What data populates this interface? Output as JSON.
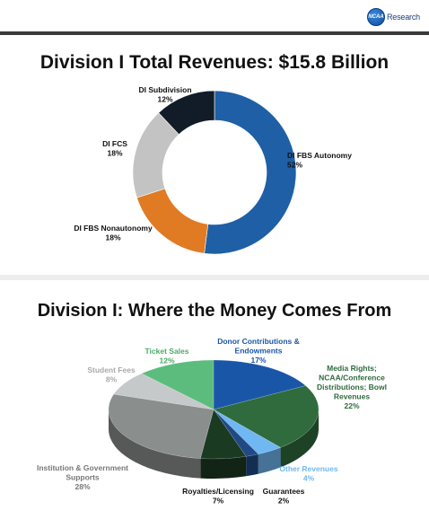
{
  "header": {
    "logo_text": "Research",
    "logo_mark": "NCAA"
  },
  "chart_data": [
    {
      "type": "pie",
      "variant": "donut",
      "title": "Division I Total Revenues: $15.8 Billion",
      "slices": [
        {
          "label": "DI FBS Autonomy",
          "value": 52,
          "value_label": "52%",
          "color": "#1f5fa6"
        },
        {
          "label": "DI FBS Nonautonomy",
          "value": 18,
          "value_label": "18%",
          "color": "#e07b24"
        },
        {
          "label": "DI FCS",
          "value": 18,
          "value_label": "18%",
          "color": "#c3c3c3"
        },
        {
          "label": "DI Subdivision",
          "value": 12,
          "value_label": "12%",
          "color": "#111c28"
        }
      ]
    },
    {
      "type": "pie",
      "variant": "3d",
      "title": "Division I: Where the Money Comes From",
      "slices": [
        {
          "label": "Donor Contributions & Endowments",
          "value": 17,
          "value_label": "17%",
          "color": "#1a56a8",
          "label_color": "#1a56a8"
        },
        {
          "label": "Media Rights; NCAA/Conference Distributions; Bowl Revenues",
          "value": 22,
          "value_label": "22%",
          "color": "#2f6b3c",
          "label_color": "#2f6b3c"
        },
        {
          "label": "Other Revenues",
          "value": 4,
          "value_label": "4%",
          "color": "#6fb8f2",
          "label_color": "#6fb8f2"
        },
        {
          "label": "Guarantees",
          "value": 2,
          "value_label": "2%",
          "color": "#1f4a86",
          "label_color": "#111111"
        },
        {
          "label": "Royalties/Licensing",
          "value": 7,
          "value_label": "7%",
          "color": "#1b3a22",
          "label_color": "#111111"
        },
        {
          "label": "Institution & Government Supports",
          "value": 28,
          "value_label": "28%",
          "color": "#8a8f8e",
          "label_color": "#777777"
        },
        {
          "label": "Student Fees",
          "value": 8,
          "value_label": "8%",
          "color": "#c6c9c9",
          "label_color": "#aaaaaa"
        },
        {
          "label": "Ticket Sales",
          "value": 12,
          "value_label": "12%",
          "color": "#5cbc7d",
          "label_color": "#4caa6a"
        }
      ]
    }
  ]
}
